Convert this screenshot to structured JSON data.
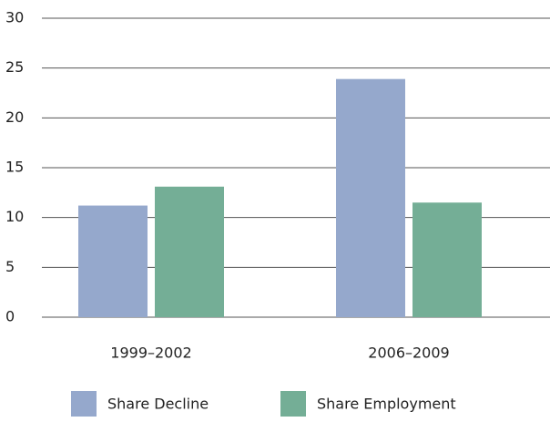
{
  "chart_data": {
    "type": "bar",
    "categories": [
      "1999–2002",
      "2006–2009"
    ],
    "series": [
      {
        "name": "Share Decline",
        "color": "#95a8cc",
        "values": [
          11.2,
          23.9
        ]
      },
      {
        "name": "Share Employment",
        "color": "#74ae96",
        "values": [
          13.1,
          11.5
        ]
      }
    ],
    "ylim": [
      0,
      30
    ],
    "yticks": [
      0,
      5,
      10,
      15,
      20,
      25,
      30
    ],
    "grid": true
  }
}
